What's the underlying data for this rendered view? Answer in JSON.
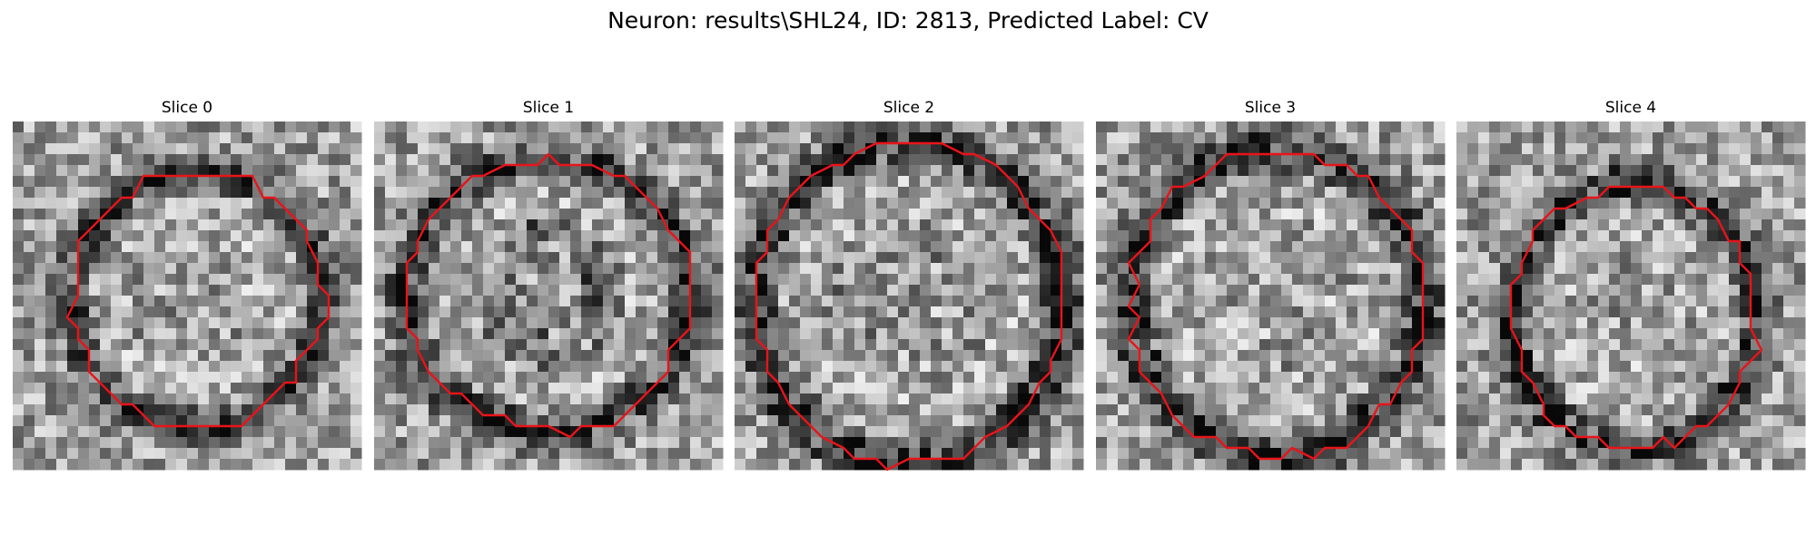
{
  "figure": {
    "title": "Neuron: results\\SHL24, ID: 2813, Predicted Label: CV"
  },
  "contour_color": "#e8141a",
  "slices": [
    {
      "title": "Slice 0",
      "seed": 11,
      "center": [
        0.53,
        0.51
      ],
      "radius": [
        0.36,
        0.37
      ],
      "ring_dark": 0.4,
      "inner_dark": 0.1
    },
    {
      "title": "Slice 1",
      "seed": 23,
      "center": [
        0.5,
        0.5
      ],
      "radius": [
        0.41,
        0.39
      ],
      "ring_dark": 0.42,
      "inner_dark": 0.3
    },
    {
      "title": "Slice 2",
      "seed": 37,
      "center": [
        0.5,
        0.52
      ],
      "radius": [
        0.44,
        0.46
      ],
      "ring_dark": 0.45,
      "inner_dark": 0.15
    },
    {
      "title": "Slice 3",
      "seed": 41,
      "center": [
        0.52,
        0.52
      ],
      "radius": [
        0.42,
        0.44
      ],
      "ring_dark": 0.45,
      "inner_dark": 0.08
    },
    {
      "title": "Slice 4",
      "seed": 53,
      "center": [
        0.51,
        0.56
      ],
      "radius": [
        0.35,
        0.38
      ],
      "ring_dark": 0.45,
      "inner_dark": 0.1
    }
  ]
}
